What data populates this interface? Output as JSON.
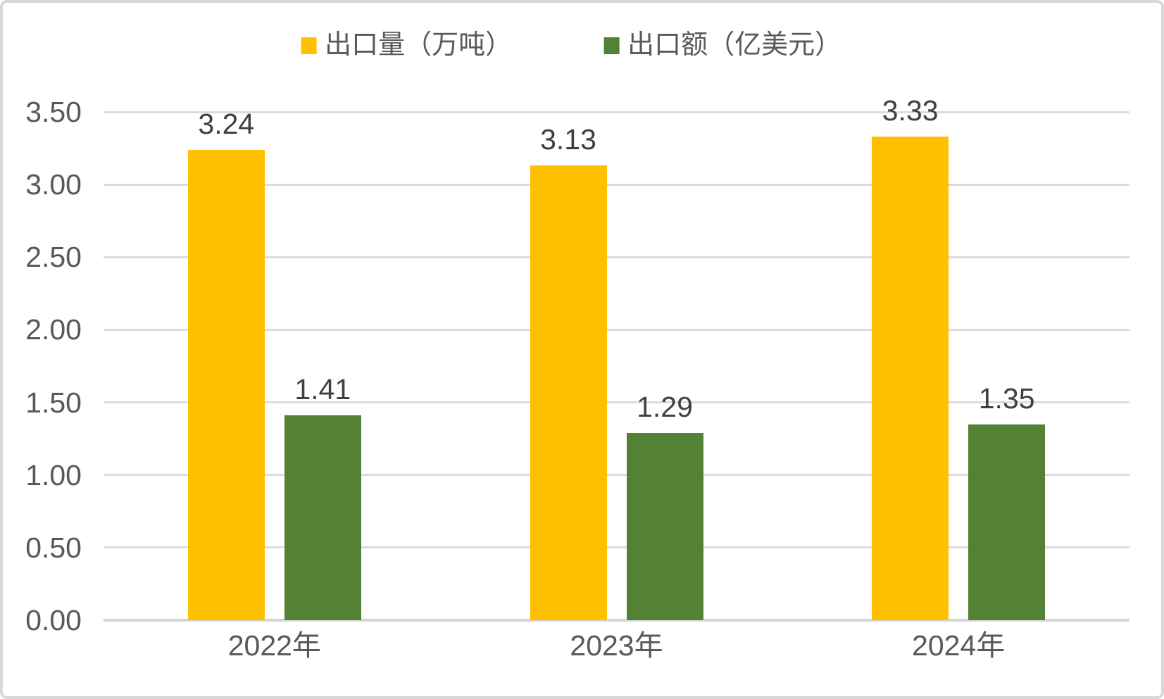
{
  "panel": {
    "background": "#ffffff",
    "border_color": "#d8d8d8",
    "gridline_color": "#dcdcdc",
    "axis_line_color": "#d4d4d4",
    "axis_text_color": "#595959",
    "data_label_color": "#404040"
  },
  "legend": {
    "position": "top-center",
    "items": [
      {
        "label": "出口量（万吨）",
        "color": "#FFC000"
      },
      {
        "label": "出口额（亿美元）",
        "color": "#538235"
      }
    ]
  },
  "chart_data": {
    "type": "bar",
    "title": "",
    "xlabel": "",
    "ylabel": "",
    "categories": [
      "2022年",
      "2023年",
      "2024年"
    ],
    "series": [
      {
        "name": "出口量（万吨）",
        "color": "#FFC000",
        "values": [
          3.24,
          3.13,
          3.33
        ]
      },
      {
        "name": "出口额（亿美元）",
        "color": "#538235",
        "values": [
          1.41,
          1.29,
          1.35
        ]
      }
    ],
    "data_labels": [
      [
        "3.24",
        "3.13",
        "3.33"
      ],
      [
        "1.41",
        "1.29",
        "1.35"
      ]
    ],
    "y_axis": {
      "min": 0,
      "max": 3.5,
      "step": 0.5,
      "tick_labels": [
        "0.00",
        "0.50",
        "1.00",
        "1.50",
        "2.00",
        "2.50",
        "3.00",
        "3.50"
      ]
    },
    "grid": true,
    "legend_position": "top"
  }
}
